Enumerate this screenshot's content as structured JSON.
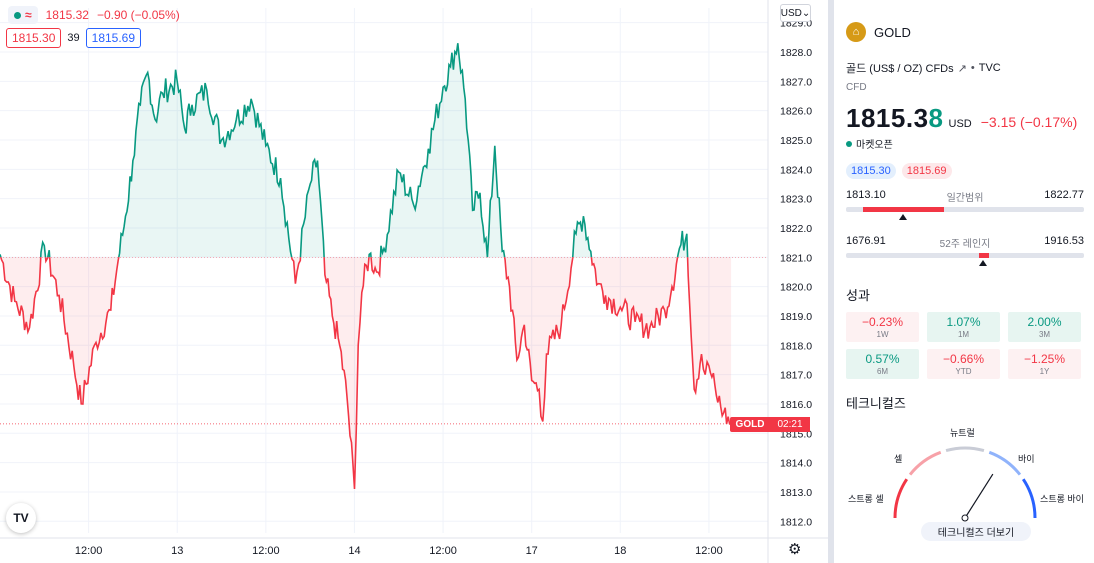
{
  "legend": {
    "price": "1815.32",
    "change": "−0.90 (−0.05%)",
    "bid": "1815.30",
    "spread": "39",
    "ask": "1815.69"
  },
  "currency_button": "USD",
  "last_price_label": "GOLD",
  "countdown": "02:21",
  "logo_text": "TV",
  "colors": {
    "up": "#089981",
    "down": "#f23645",
    "accent": "#2962ff"
  },
  "chart_data": {
    "type": "line",
    "title": "",
    "baseline": 1821.0,
    "current_price": 1815.32,
    "ylim": [
      1811.6,
      1829.5
    ],
    "y_ticks": [
      1812.0,
      1813.0,
      1814.0,
      1815.0,
      1816.0,
      1817.0,
      1818.0,
      1819.0,
      1820.0,
      1821.0,
      1822.0,
      1823.0,
      1824.0,
      1825.0,
      1826.0,
      1827.0,
      1828.0,
      1829.0
    ],
    "x_tick_labels": [
      "12:00",
      "13",
      "12:00",
      "14",
      "12:00",
      "17",
      "18",
      "12:00"
    ],
    "x_tick_positions": [
      12.0,
      24.0,
      36.0,
      48.0,
      60.0,
      72.0,
      84.0,
      96.0
    ],
    "x_range": [
      0.0,
      104.0
    ],
    "x": [
      0,
      2,
      4,
      6,
      8,
      10,
      11,
      13,
      15,
      16,
      17,
      18,
      19,
      20,
      21,
      22,
      24,
      25,
      26,
      28,
      30,
      32,
      34,
      36,
      38,
      40,
      42,
      43,
      44,
      45,
      46,
      47,
      48,
      48.5,
      49,
      50,
      51,
      52,
      54,
      56,
      58,
      60,
      61,
      62,
      63,
      64,
      65,
      66,
      67,
      68,
      69,
      70,
      71,
      72,
      73,
      73.5,
      74,
      76,
      78,
      79,
      80,
      81,
      82,
      84,
      86,
      88,
      90,
      91,
      92,
      93,
      94,
      95,
      95.5,
      96,
      97,
      98,
      99
    ],
    "y": [
      1821.1,
      1819.5,
      1818.6,
      1821.4,
      1819.7,
      1817.3,
      1816.0,
      1818.1,
      1819.2,
      1820.9,
      1822.4,
      1824.3,
      1826.2,
      1827.3,
      1825.7,
      1826.6,
      1827.0,
      1825.4,
      1826.2,
      1826.7,
      1825.0,
      1825.7,
      1826.4,
      1824.8,
      1823.7,
      1820.1,
      1823.5,
      1824.3,
      1820.4,
      1819.0,
      1818.0,
      1816.2,
      1813.1,
      1818.0,
      1819.8,
      1821.1,
      1820.5,
      1821.3,
      1823.9,
      1822.8,
      1824.7,
      1826.8,
      1827.5,
      1828.3,
      1826.4,
      1822.6,
      1823.2,
      1821.0,
      1824.8,
      1821.2,
      1820.0,
      1817.5,
      1818.7,
      1816.8,
      1816.5,
      1815.4,
      1817.7,
      1818.7,
      1821.8,
      1822.4,
      1821.2,
      1820.1,
      1819.7,
      1819.3,
      1818.8,
      1818.6,
      1819.2,
      1820.0,
      1821.3,
      1821.8,
      1816.5,
      1817.7,
      1817.0,
      1817.3,
      1816.3,
      1815.7,
      1815.3
    ]
  },
  "side": {
    "symbol": "GOLD",
    "symbol_logo_glyph": "⌂",
    "description": "골드 (US$ / OZ) CFDs",
    "source": "TVC",
    "type": "CFD",
    "price_main": "1815.3",
    "price_last": "8",
    "currency": "USD",
    "change": "−3.15 (−0.17%)",
    "market_status": "마켓오픈",
    "bid": "1815.30",
    "ask": "1815.69",
    "day_range": {
      "low": "1813.10",
      "high": "1822.77",
      "title": "일간범위",
      "fill_from": 0.07,
      "fill_to": 0.41,
      "marker": 0.24
    },
    "week52_range": {
      "low": "1676.91",
      "high": "1916.53",
      "title": "52주 레인지",
      "fill_from": 0.56,
      "fill_to": 0.6,
      "marker": 0.58
    },
    "performance_title": "성과",
    "performance": [
      {
        "value": "−0.23%",
        "label": "1W",
        "trend": "neg"
      },
      {
        "value": "1.07%",
        "label": "1M",
        "trend": "pos"
      },
      {
        "value": "2.00%",
        "label": "3M",
        "trend": "pos"
      },
      {
        "value": "0.57%",
        "label": "6M",
        "trend": "pos"
      },
      {
        "value": "−0.66%",
        "label": "YTD",
        "trend": "neg"
      },
      {
        "value": "−1.25%",
        "label": "1Y",
        "trend": "neg"
      }
    ],
    "technicals_title": "테크니컬즈",
    "gauge": {
      "strong_sell": "스트롱 셀",
      "sell": "셀",
      "neutral": "뉴트럴",
      "buy": "바이",
      "strong_buy": "스트롱 바이",
      "needle_value": 0.68
    },
    "technicals_button": "테크니컬즈 더보기"
  }
}
